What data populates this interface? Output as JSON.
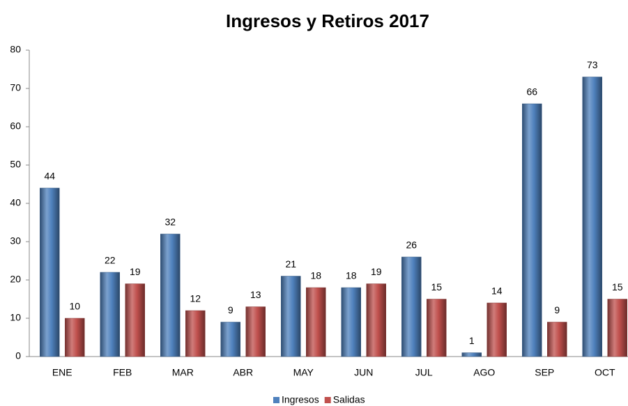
{
  "chart_data": {
    "type": "bar",
    "title": "Ingresos y Retiros 2017",
    "categories": [
      "ENE",
      "FEB",
      "MAR",
      "ABR",
      "MAY",
      "JUN",
      "JUL",
      "AGO",
      "SEP",
      "OCT"
    ],
    "series": [
      {
        "name": "Ingresos",
        "color": "#4f81bd",
        "values": [
          44,
          22,
          32,
          9,
          21,
          18,
          26,
          1,
          66,
          73
        ]
      },
      {
        "name": "Salidas",
        "color": "#c0504d",
        "values": [
          10,
          19,
          12,
          13,
          18,
          19,
          15,
          14,
          9,
          15
        ]
      }
    ],
    "ylim": [
      0,
      80
    ],
    "yticks": [
      0,
      10,
      20,
      30,
      40,
      50,
      60,
      70,
      80
    ],
    "grid": false,
    "legend": "bottom"
  }
}
